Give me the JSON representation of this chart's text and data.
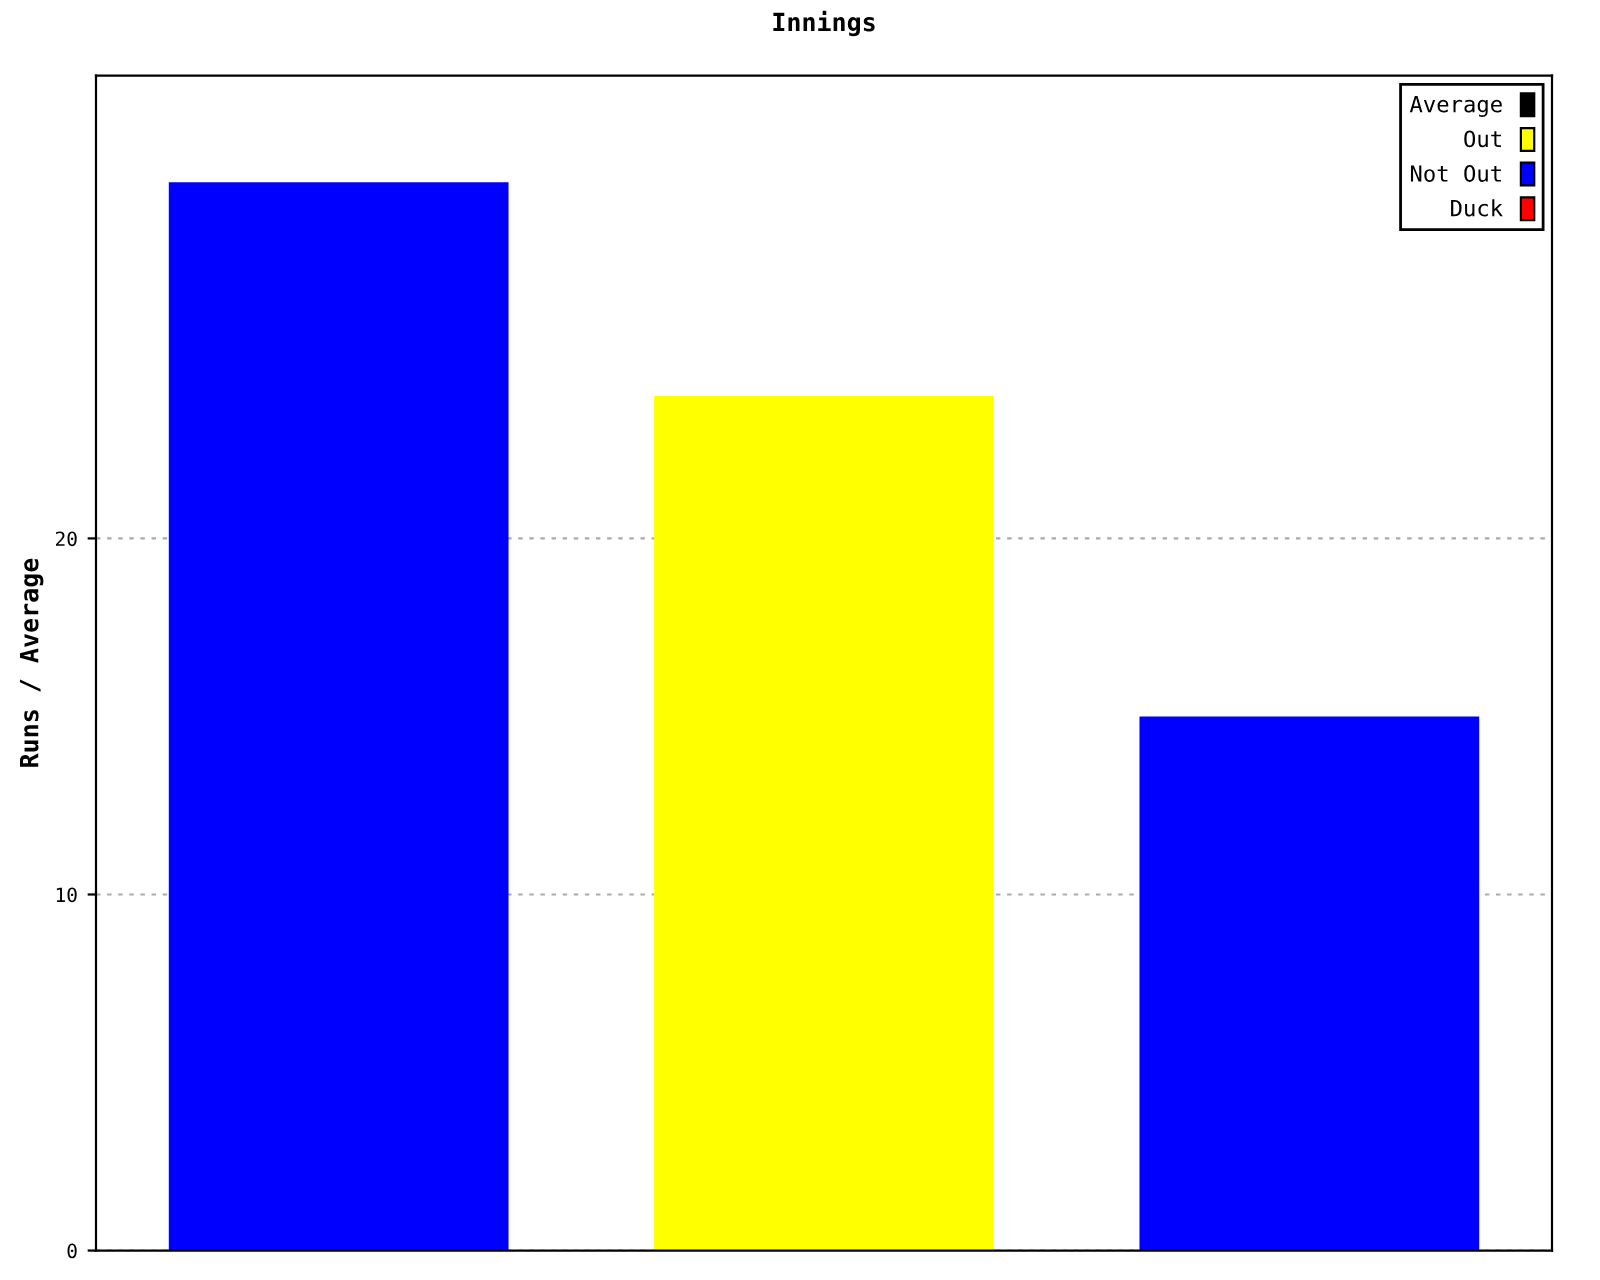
{
  "chart_data": {
    "type": "bar",
    "title": "Innings",
    "ylabel": "Runs / Average",
    "categories": [
      null,
      null,
      null
    ],
    "series": [
      {
        "name": "Average",
        "color": "#000000",
        "values": [
          null,
          null,
          null
        ]
      },
      {
        "name": "Out",
        "color": "#ffff00",
        "values": [
          null,
          24,
          null
        ]
      },
      {
        "name": "Not Out",
        "color": "#0000ff",
        "values": [
          30,
          null,
          15
        ]
      },
      {
        "name": "Duck",
        "color": "#ff0000",
        "values": [
          null,
          null,
          null
        ]
      }
    ],
    "ylim": [
      0,
      33
    ],
    "yticks": [
      0,
      10,
      20
    ],
    "grid": "y",
    "legend": "top right",
    "tick_labels": "y"
  }
}
